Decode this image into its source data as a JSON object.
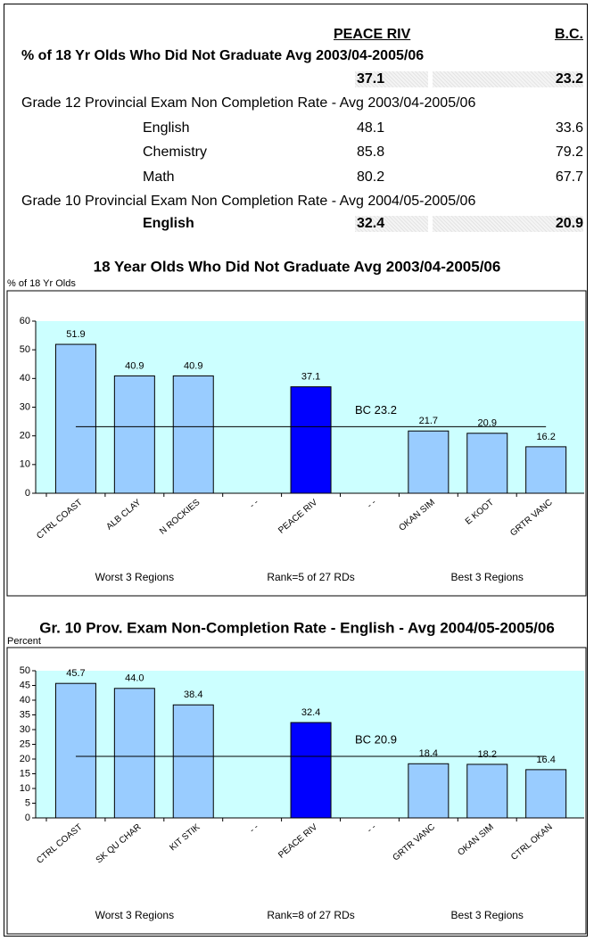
{
  "table": {
    "columns": [
      "PEACE RIV",
      "B.C."
    ],
    "sections": [
      {
        "title": "% of 18 Yr Olds Who Did Not Graduate Avg 2003/04-2005/06",
        "rows": [
          {
            "values": [
              37.1,
              23.2
            ]
          }
        ]
      },
      {
        "title": "Grade 12 Provincial Exam Non Completion Rate - Avg 2003/04-2005/06",
        "rows": [
          {
            "label": "English",
            "values": [
              48.1,
              33.6
            ]
          },
          {
            "label": "Chemistry",
            "values": [
              85.8,
              79.2
            ]
          },
          {
            "label": "Math",
            "values": [
              80.2,
              67.7
            ]
          }
        ]
      },
      {
        "title": "Grade 10 Provincial Exam Non Completion Rate - Avg 2004/05-2005/06",
        "rows": [
          {
            "label": "English",
            "values": [
              32.4,
              20.9
            ]
          }
        ]
      }
    ]
  },
  "chart_data": [
    {
      "type": "bar",
      "title": "18 Year Olds Who Did Not Graduate Avg 2003/04-2005/06",
      "y_label": "% of 18 Yr Olds",
      "categories": [
        "CTRL COAST",
        "ALB CLAY",
        "N ROCKIES",
        "- -",
        "PEACE RIV",
        "- -",
        "OKAN SIM",
        "E KOOT",
        "GRTR VANC"
      ],
      "values": [
        51.9,
        40.9,
        40.9,
        null,
        37.1,
        null,
        21.7,
        20.9,
        16.2
      ],
      "colors": [
        "#99ccff",
        "#99ccff",
        "#99ccff",
        null,
        "#0000ff",
        null,
        "#99ccff",
        "#99ccff",
        "#99ccff"
      ],
      "ylim": [
        0,
        60
      ],
      "yticks": [
        0,
        10,
        20,
        30,
        40,
        50,
        60
      ],
      "reference": {
        "value": 23.2,
        "label": "BC 23.2"
      },
      "annotations": [
        "Worst 3 Regions",
        "Rank=5 of 27 RDs",
        "Best 3 Regions"
      ]
    },
    {
      "type": "bar",
      "title": "Gr. 10 Prov. Exam Non-Completion Rate - English - Avg 2004/05-2005/06",
      "y_label": "Percent",
      "categories": [
        "CTRL COAST",
        "SK QU CHAR",
        "KIT STIK",
        "- -",
        "PEACE RIV",
        "- -",
        "GRTR VANC",
        "OKAN SIM",
        "CTRL OKAN"
      ],
      "values": [
        45.7,
        44.0,
        38.4,
        null,
        32.4,
        null,
        18.4,
        18.2,
        16.4
      ],
      "value_labels": [
        "45.7",
        "44.0",
        "38.4",
        null,
        "32.4",
        null,
        "18.4",
        "18.2",
        "16.4"
      ],
      "colors": [
        "#99ccff",
        "#99ccff",
        "#99ccff",
        null,
        "#0000ff",
        null,
        "#99ccff",
        "#99ccff",
        "#99ccff"
      ],
      "ylim": [
        0,
        50
      ],
      "yticks": [
        0,
        5,
        10,
        15,
        20,
        25,
        30,
        35,
        40,
        45,
        50
      ],
      "reference": {
        "value": 20.9,
        "label": "BC 20.9"
      },
      "annotations": [
        "Worst 3 Regions",
        "Rank=8 of 27 RDs",
        "Best 3 Regions"
      ]
    }
  ]
}
